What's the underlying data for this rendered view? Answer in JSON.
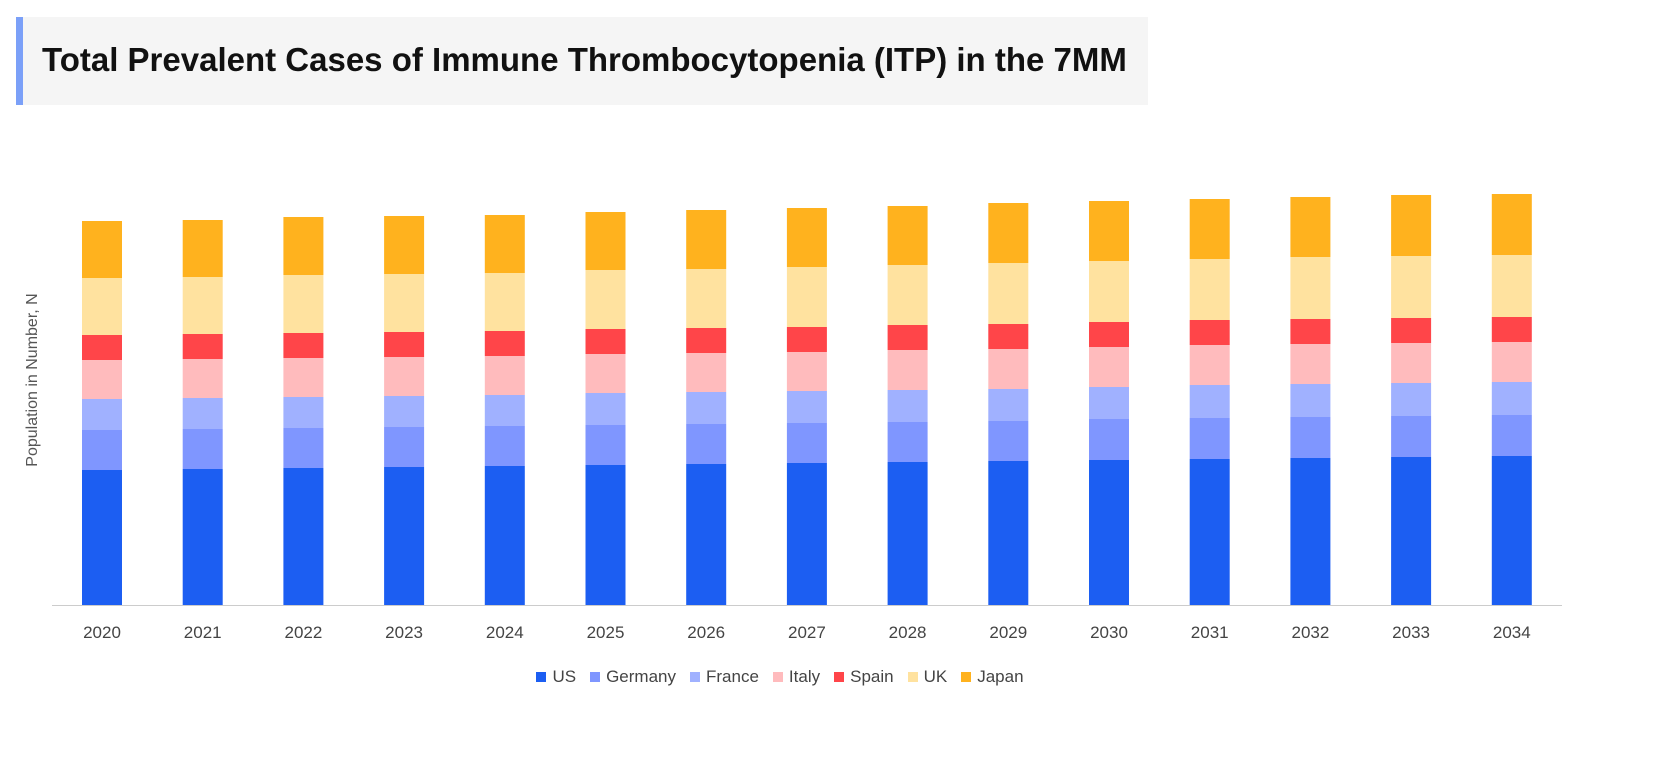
{
  "chart_data": {
    "type": "bar",
    "stacked": true,
    "title": "Total Prevalent Cases of Immune Thrombocytopenia (ITP) in the 7MM",
    "xlabel": "",
    "ylabel": "Population  in Number, N",
    "y_ticks_shown": false,
    "grid": false,
    "legend_position": "bottom",
    "categories": [
      "2020",
      "2021",
      "2022",
      "2023",
      "2024",
      "2025",
      "2026",
      "2027",
      "2028",
      "2029",
      "2030",
      "2031",
      "2032",
      "2033",
      "2034"
    ],
    "series": [
      {
        "name": "US",
        "color": "#1c5ef2",
        "values": [
          135,
          136,
          137,
          138,
          139,
          140,
          141,
          142,
          143,
          144,
          145,
          146,
          147,
          148,
          149
        ]
      },
      {
        "name": "Germany",
        "color": "#7f96ff",
        "values": [
          40,
          40,
          40,
          40,
          40,
          40,
          40,
          40,
          40,
          40,
          41,
          41,
          41,
          41,
          41
        ]
      },
      {
        "name": "France",
        "color": "#a0b1ff",
        "values": [
          31,
          31,
          31,
          31,
          31,
          32,
          32,
          32,
          32,
          32,
          32,
          33,
          33,
          33,
          33
        ]
      },
      {
        "name": "Italy",
        "color": "#ffbbbd",
        "values": [
          39,
          39,
          39,
          39,
          39,
          39,
          39,
          39,
          40,
          40,
          40,
          40,
          40,
          40,
          40
        ]
      },
      {
        "name": "Spain",
        "color": "#ff4549",
        "values": [
          25,
          25,
          25,
          25,
          25,
          25,
          25,
          25,
          25,
          25,
          25,
          25,
          25,
          25,
          25
        ]
      },
      {
        "name": "UK",
        "color": "#ffe29f",
        "values": [
          57,
          57,
          58,
          58,
          58,
          59,
          59,
          60,
          60,
          61,
          61,
          61,
          62,
          62,
          62
        ]
      },
      {
        "name": "Japan",
        "color": "#ffb21e",
        "values": [
          57,
          57,
          58,
          58,
          58,
          58,
          59,
          59,
          59,
          60,
          60,
          60,
          60,
          61,
          61
        ]
      }
    ]
  }
}
